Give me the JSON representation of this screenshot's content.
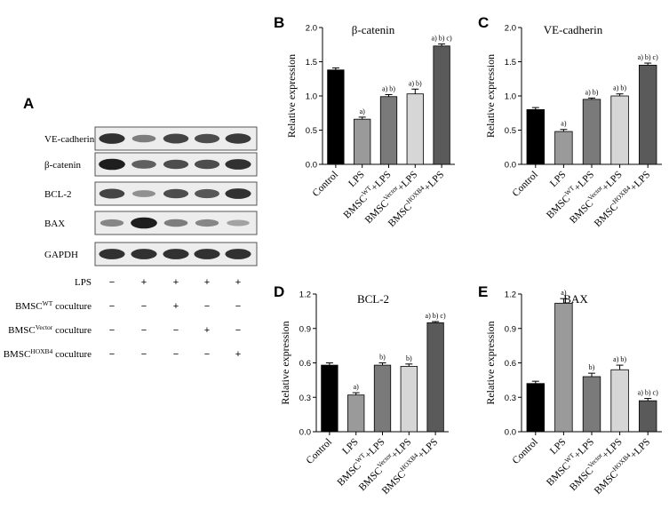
{
  "panel_letters": {
    "a": "A",
    "b": "B",
    "c": "C",
    "d": "D",
    "e": "E"
  },
  "blot": {
    "proteins": [
      "VE-cadherin",
      "β-catenin",
      "BCL-2",
      "BAX",
      "GAPDH"
    ],
    "band_intensity": [
      [
        0.85,
        0.45,
        0.75,
        0.7,
        0.8
      ],
      [
        0.95,
        0.6,
        0.7,
        0.7,
        0.85
      ],
      [
        0.75,
        0.35,
        0.7,
        0.65,
        0.85
      ],
      [
        0.4,
        0.95,
        0.45,
        0.4,
        0.25
      ],
      [
        0.85,
        0.85,
        0.85,
        0.85,
        0.85
      ]
    ],
    "conditions": [
      {
        "label": "LPS",
        "sup": "",
        "suffix": "",
        "signs": [
          "−",
          "+",
          "+",
          "+",
          "+"
        ]
      },
      {
        "label": "BMSC",
        "sup": "WT",
        "suffix": " coculture",
        "signs": [
          "−",
          "−",
          "+",
          "−",
          "−"
        ]
      },
      {
        "label": "BMSC",
        "sup": "Vector",
        "suffix": " coculture",
        "signs": [
          "−",
          "−",
          "−",
          "+",
          "−"
        ]
      },
      {
        "label": "BMSC",
        "sup": "HOXB4",
        "suffix": " coculture",
        "signs": [
          "−",
          "−",
          "−",
          "−",
          "+"
        ]
      }
    ]
  },
  "chart_data": [
    {
      "type": "bar",
      "title": "β-catenin",
      "ylabel": "Relative expression",
      "xlabel": "",
      "ylim": [
        0,
        2.0
      ],
      "yticks": [
        "0.0",
        "0.5",
        "1.0",
        "1.5",
        "2.0"
      ],
      "categories": [
        "Control",
        "LPS",
        "BMSC^WT+LPS",
        "BMSC^Vector+LPS",
        "BMSC^HOXB4+LPS"
      ],
      "values": [
        1.38,
        0.66,
        0.99,
        1.03,
        1.73
      ],
      "errors": [
        0.03,
        0.03,
        0.03,
        0.07,
        0.03
      ],
      "annotations": [
        "",
        "a)",
        "a) b)",
        "a) b)",
        "a) b) c)"
      ],
      "colors": [
        "#000000",
        "#9a9a9a",
        "#7a7a7a",
        "#d6d6d6",
        "#5a5a5a"
      ]
    },
    {
      "type": "bar",
      "title": "VE-cadherin",
      "ylabel": "Relative expression",
      "xlabel": "",
      "ylim": [
        0,
        2.0
      ],
      "yticks": [
        "0.0",
        "0.5",
        "1.0",
        "1.5",
        "2.0"
      ],
      "categories": [
        "Control",
        "LPS",
        "BMSC^WT+LPS",
        "BMSC^Vector+LPS",
        "BMSC^HOXB4+LPS"
      ],
      "values": [
        0.8,
        0.48,
        0.95,
        1.0,
        1.45
      ],
      "errors": [
        0.03,
        0.03,
        0.02,
        0.03,
        0.03
      ],
      "annotations": [
        "",
        "a)",
        "a) b)",
        "a) b)",
        "a) b) c)"
      ],
      "colors": [
        "#000000",
        "#9a9a9a",
        "#7a7a7a",
        "#d6d6d6",
        "#5a5a5a"
      ]
    },
    {
      "type": "bar",
      "title": "BCL-2",
      "ylabel": "Relative expression",
      "xlabel": "",
      "ylim": [
        0,
        1.2
      ],
      "yticks": [
        "0.0",
        "0.3",
        "0.6",
        "0.9",
        "1.2"
      ],
      "categories": [
        "Control",
        "LPS",
        "BMSC^WT+LPS",
        "BMSC^Vector+LPS",
        "BMSC^HOXB4+LPS"
      ],
      "values": [
        0.58,
        0.32,
        0.58,
        0.57,
        0.95
      ],
      "errors": [
        0.02,
        0.02,
        0.02,
        0.02,
        0.01
      ],
      "annotations": [
        "",
        "a)",
        "b)",
        "b)",
        "a) b) c)"
      ],
      "colors": [
        "#000000",
        "#9a9a9a",
        "#7a7a7a",
        "#d6d6d6",
        "#5a5a5a"
      ]
    },
    {
      "type": "bar",
      "title": "BAX",
      "ylabel": "Relative expression",
      "xlabel": "",
      "ylim": [
        0,
        1.2
      ],
      "yticks": [
        "0.0",
        "0.3",
        "0.6",
        "0.9",
        "1.2"
      ],
      "categories": [
        "Control",
        "LPS",
        "BMSC^WT+LPS",
        "BMSC^Vector+LPS",
        "BMSC^HOXB4+LPS"
      ],
      "values": [
        0.42,
        1.12,
        0.48,
        0.54,
        0.27
      ],
      "errors": [
        0.02,
        0.04,
        0.03,
        0.04,
        0.02
      ],
      "annotations": [
        "",
        "a)",
        "b)",
        "a) b)",
        "a) b) c)"
      ],
      "colors": [
        "#000000",
        "#9a9a9a",
        "#7a7a7a",
        "#d6d6d6",
        "#5a5a5a"
      ]
    }
  ]
}
